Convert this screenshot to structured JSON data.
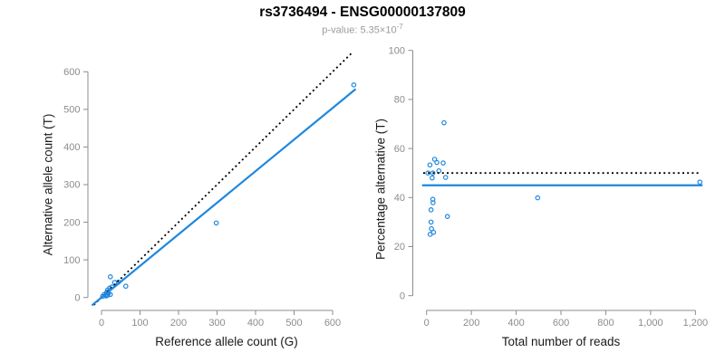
{
  "header": {
    "title": "rs3736494 - ENSG00000137809",
    "subtitle_prefix": "p-value: 5.35×10",
    "subtitle_exponent": "-7"
  },
  "colors": {
    "accent_blue": "#1e87dd",
    "dotted_black": "#000000",
    "axis_gray": "#8c8c8c",
    "tick_label_gray": "#8c8c8c",
    "axis_title_color": "#1a1a1a",
    "subtitle_gray": "#9a9a9a"
  },
  "chart_data": [
    {
      "type": "scatter",
      "name": "allele-counts",
      "xlabel": "Reference allele count (G)",
      "ylabel": "Alternative allele count (T)",
      "xlim": [
        0,
        600
      ],
      "ylim": [
        0,
        600
      ],
      "xticks": [
        0,
        100,
        200,
        300,
        400,
        500,
        600
      ],
      "xtick_labels": [
        "0",
        "100",
        "200",
        "300",
        "400",
        "500",
        "600"
      ],
      "yticks": [
        0,
        100,
        200,
        300,
        400,
        500,
        600
      ],
      "ytick_labels": [
        "0",
        "100",
        "200",
        "300",
        "400",
        "500",
        "600"
      ],
      "grid": false,
      "points": [
        [
          7,
          8
        ],
        [
          16,
          20
        ],
        [
          21,
          25
        ],
        [
          34,
          40
        ],
        [
          14,
          14
        ],
        [
          27,
          28
        ],
        [
          13,
          12
        ],
        [
          44,
          41
        ],
        [
          3,
          3
        ],
        [
          23,
          55
        ],
        [
          17,
          11
        ],
        [
          18,
          11
        ],
        [
          13,
          7
        ],
        [
          63,
          30
        ],
        [
          14,
          6
        ],
        [
          16,
          6
        ],
        [
          23,
          8
        ],
        [
          12,
          4
        ],
        [
          298,
          198
        ],
        [
          655,
          565
        ]
      ],
      "lines": [
        {
          "name": "identity-line",
          "style": "dotted",
          "color_key": "dotted_black",
          "pts": [
            [
              -20,
              -20
            ],
            [
              650,
              650
            ]
          ]
        },
        {
          "name": "regression-line",
          "style": "solid",
          "color_key": "accent_blue",
          "pts": [
            [
              -25,
              -21
            ],
            [
              660,
              554
            ]
          ]
        }
      ]
    },
    {
      "type": "scatter",
      "name": "percentage-vs-reads",
      "xlabel": "Total number of reads",
      "ylabel": "Percentage alternative (T)",
      "xlim": [
        0,
        1200
      ],
      "ylim": [
        0,
        100
      ],
      "xticks": [
        0,
        200,
        400,
        600,
        800,
        1000,
        1200
      ],
      "xtick_labels": [
        "0",
        "200",
        "400",
        "600",
        "800",
        "1,000",
        "1,200"
      ],
      "yticks": [
        0,
        20,
        40,
        60,
        80,
        100
      ],
      "ytick_labels": [
        "0",
        "20",
        "40",
        "60",
        "80",
        "100"
      ],
      "grid": false,
      "points": [
        [
          15,
          53.3
        ],
        [
          36,
          55.6
        ],
        [
          46,
          54.3
        ],
        [
          74,
          54.1
        ],
        [
          28,
          50
        ],
        [
          55,
          50.9
        ],
        [
          25,
          48
        ],
        [
          85,
          48.2
        ],
        [
          6,
          50
        ],
        [
          78,
          70.5
        ],
        [
          28,
          39.3
        ],
        [
          29,
          37.9
        ],
        [
          20,
          35
        ],
        [
          93,
          32.3
        ],
        [
          20,
          30
        ],
        [
          22,
          27.3
        ],
        [
          31,
          25.8
        ],
        [
          16,
          25
        ],
        [
          496,
          39.9
        ],
        [
          1220,
          46.3
        ]
      ],
      "lines": [
        {
          "name": "expected-50pct-line",
          "style": "dotted",
          "color_key": "dotted_black",
          "pts": [
            [
              -15,
              50
            ],
            [
              1215,
              50
            ]
          ]
        },
        {
          "name": "fit-line",
          "style": "solid",
          "color_key": "accent_blue",
          "pts": [
            [
              -20,
              45
            ],
            [
              1232,
              45
            ]
          ]
        }
      ]
    }
  ]
}
